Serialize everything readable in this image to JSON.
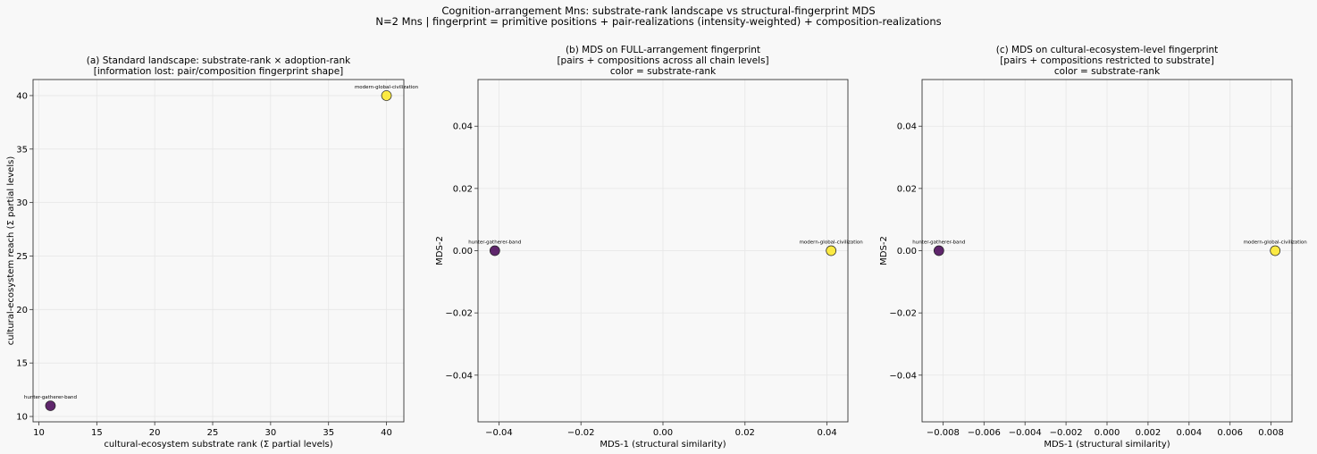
{
  "figure": {
    "title_line1": "Cognition-arrangement Mns: substrate-rank landscape vs structural-fingerprint MDS",
    "title_line2": "N=2 Mns | fingerprint = primitive positions + pair-realizations (intensity-weighted) + composition-realizations"
  },
  "colors": {
    "background": "#f8f8f8",
    "grid": "#e6e6e6",
    "low_rank": "#440154",
    "high_rank": "#fde725"
  },
  "chart_data": [
    {
      "type": "scatter",
      "title_lines": [
        "(a) Standard landscape: substrate-rank × adoption-rank",
        "[information lost: pair/composition fingerprint shape]"
      ],
      "xlabel": "cultural-ecosystem substrate rank (Σ partial levels)",
      "ylabel": "cultural-ecosystem reach (Σ partial levels)",
      "xlim": [
        9.5,
        41.5
      ],
      "ylim": [
        9.5,
        41.5
      ],
      "xticks": [
        10,
        15,
        20,
        25,
        30,
        35,
        40
      ],
      "xtick_labels": [
        "10",
        "15",
        "20",
        "25",
        "30",
        "35",
        "40"
      ],
      "yticks": [
        10,
        15,
        20,
        25,
        30,
        35,
        40
      ],
      "ytick_labels": [
        "10",
        "15",
        "20",
        "25",
        "30",
        "35",
        "40"
      ],
      "grid": true,
      "points": [
        {
          "label": "hunter-gatherer-band",
          "x": 11,
          "y": 11,
          "color": "#440154"
        },
        {
          "label": "modern-global-civilization",
          "x": 40,
          "y": 40,
          "color": "#fde725"
        }
      ]
    },
    {
      "type": "scatter",
      "title_lines": [
        "(b) MDS on FULL-arrangement fingerprint",
        "[pairs + compositions across all chain levels]",
        "color = substrate-rank"
      ],
      "xlabel": "MDS-1 (structural similarity)",
      "ylabel": "MDS-2",
      "xlim": [
        -0.0451,
        0.0451
      ],
      "ylim": [
        -0.055,
        0.055
      ],
      "xticks": [
        -0.04,
        -0.02,
        0.0,
        0.02,
        0.04
      ],
      "xtick_labels": [
        "−0.04",
        "−0.02",
        "0.00",
        "0.02",
        "0.04"
      ],
      "yticks": [
        -0.04,
        -0.02,
        0.0,
        0.02,
        0.04
      ],
      "ytick_labels": [
        "−0.04",
        "−0.02",
        "0.00",
        "0.02",
        "0.04"
      ],
      "grid": true,
      "points": [
        {
          "label": "hunter-gatherer-band",
          "x": -0.041,
          "y": 0.0,
          "color": "#440154"
        },
        {
          "label": "modern-global-civilization",
          "x": 0.041,
          "y": 0.0,
          "color": "#fde725"
        }
      ]
    },
    {
      "type": "scatter",
      "title_lines": [
        "(c) MDS on cultural-ecosystem-level fingerprint",
        "[pairs + compositions restricted to substrate]",
        "color = substrate-rank"
      ],
      "xlabel": "MDS-1 (structural similarity)",
      "ylabel": "MDS-2",
      "xlim": [
        -0.00902,
        0.00902
      ],
      "ylim": [
        -0.055,
        0.055
      ],
      "xticks": [
        -0.008,
        -0.006,
        -0.004,
        -0.002,
        0.0,
        0.002,
        0.004,
        0.006,
        0.008
      ],
      "xtick_labels": [
        "−0.008",
        "−0.006",
        "−0.004",
        "−0.002",
        "0.000",
        "0.002",
        "0.004",
        "0.006",
        "0.008"
      ],
      "yticks": [
        -0.04,
        -0.02,
        0.0,
        0.02,
        0.04
      ],
      "ytick_labels": [
        "−0.04",
        "−0.02",
        "0.00",
        "0.02",
        "0.04"
      ],
      "grid": true,
      "points": [
        {
          "label": "hunter-gatherer-band",
          "x": -0.0082,
          "y": 0.0,
          "color": "#440154"
        },
        {
          "label": "modern-global-civilization",
          "x": 0.0082,
          "y": 0.0,
          "color": "#fde725"
        }
      ]
    }
  ]
}
